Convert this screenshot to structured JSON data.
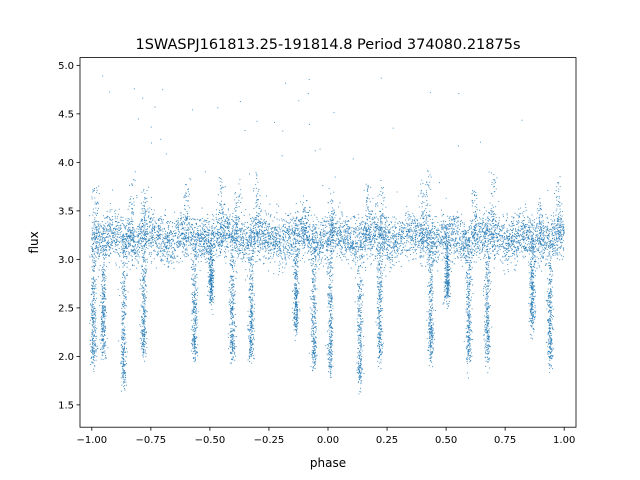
{
  "chart_data": {
    "type": "scatter",
    "title": "1SWASPJ161813.25-191814.8 Period 374080.21875s",
    "xlabel": "phase",
    "ylabel": "flux",
    "xlim": [
      -1.05,
      1.05
    ],
    "ylim": [
      1.27,
      5.08
    ],
    "xticks": [
      -1.0,
      -0.75,
      -0.5,
      -0.25,
      0.0,
      0.25,
      0.5,
      0.75,
      1.0
    ],
    "xtick_labels": [
      "−1.00",
      "−0.75",
      "−0.50",
      "−0.25",
      "0.00",
      "0.25",
      "0.50",
      "0.75",
      "1.00"
    ],
    "yticks": [
      1.5,
      2.0,
      2.5,
      3.0,
      3.5,
      4.0,
      4.5,
      5.0
    ],
    "ytick_labels": [
      "1.5",
      "2.0",
      "2.5",
      "3.0",
      "3.5",
      "4.0",
      "4.5",
      "5.0"
    ],
    "grid": false,
    "legend": "none",
    "marker_color": "#1f77b4",
    "baseline_flux": 3.22,
    "baseline_scatter": 0.12,
    "dips": [
      {
        "phase": -0.993,
        "min_flux": 1.95
      },
      {
        "phase": -0.95,
        "min_flux": 2.05
      },
      {
        "phase": -0.865,
        "min_flux": 1.75
      },
      {
        "phase": -0.78,
        "min_flux": 2.05
      },
      {
        "phase": -0.565,
        "min_flux": 2.0
      },
      {
        "phase": -0.495,
        "min_flux": 2.6
      },
      {
        "phase": -0.405,
        "min_flux": 2.0
      },
      {
        "phase": -0.325,
        "min_flux": 2.0
      },
      {
        "phase": -0.135,
        "min_flux": 2.3
      },
      {
        "phase": -0.06,
        "min_flux": 1.95
      },
      {
        "phase": 0.01,
        "min_flux": 1.85
      },
      {
        "phase": 0.135,
        "min_flux": 1.75
      },
      {
        "phase": 0.22,
        "min_flux": 2.0
      },
      {
        "phase": 0.435,
        "min_flux": 2.0
      },
      {
        "phase": 0.505,
        "min_flux": 2.6
      },
      {
        "phase": 0.595,
        "min_flux": 2.0
      },
      {
        "phase": 0.675,
        "min_flux": 2.0
      },
      {
        "phase": 0.865,
        "min_flux": 2.3
      },
      {
        "phase": 0.94,
        "min_flux": 1.95
      }
    ],
    "flares": [
      {
        "phase": -0.985,
        "peak_flux": 3.8
      },
      {
        "phase": -0.83,
        "peak_flux": 3.85
      },
      {
        "phase": -0.775,
        "peak_flux": 3.7
      },
      {
        "phase": -0.6,
        "peak_flux": 3.75
      },
      {
        "phase": -0.45,
        "peak_flux": 3.8
      },
      {
        "phase": -0.38,
        "peak_flux": 3.75
      },
      {
        "phase": -0.3,
        "peak_flux": 3.9
      },
      {
        "phase": -0.1,
        "peak_flux": 3.6
      },
      {
        "phase": 0.015,
        "peak_flux": 3.65
      },
      {
        "phase": 0.17,
        "peak_flux": 3.8
      },
      {
        "phase": 0.225,
        "peak_flux": 3.7
      },
      {
        "phase": 0.4,
        "peak_flux": 3.75
      },
      {
        "phase": 0.425,
        "peak_flux": 3.85
      },
      {
        "phase": 0.62,
        "peak_flux": 3.75
      },
      {
        "phase": 0.7,
        "peak_flux": 3.9
      },
      {
        "phase": 0.9,
        "peak_flux": 3.6
      },
      {
        "phase": 0.975,
        "peak_flux": 3.85
      }
    ]
  }
}
